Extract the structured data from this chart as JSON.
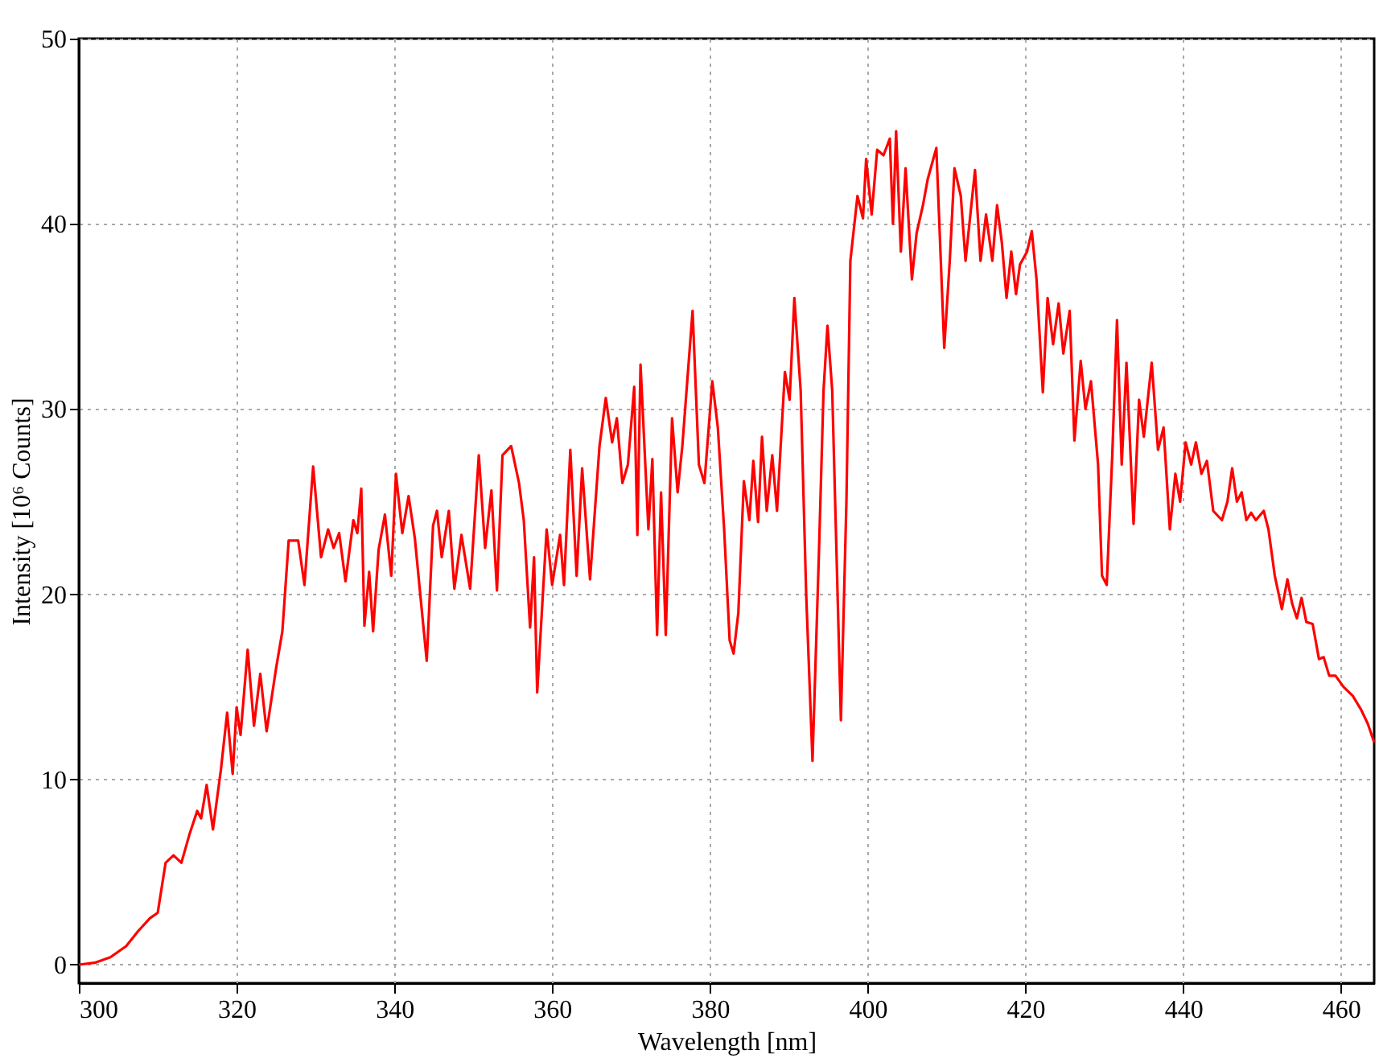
{
  "chart_data": {
    "type": "line",
    "xlabel": "Wavelength [nm]",
    "ylabel": "Intensity [10⁶ Counts]",
    "xlim": [
      300,
      464.2
    ],
    "ylim": [
      -1,
      50
    ],
    "xticks": [
      300,
      320,
      340,
      360,
      380,
      400,
      420,
      440,
      460
    ],
    "yticks": [
      0,
      10,
      20,
      30,
      40,
      50
    ],
    "grid": true,
    "line_style": "solid",
    "marker": "none",
    "x": [
      300,
      302,
      304,
      306,
      307.5,
      309,
      310,
      311,
      312,
      313,
      314,
      315,
      315.5,
      316.2,
      317,
      318,
      318.8,
      319.5,
      320,
      320.5,
      321.4,
      322.2,
      323,
      323.8,
      325,
      325.8,
      326.6,
      327.8,
      328.6,
      329.7,
      330.7,
      331.6,
      332.3,
      333,
      333.8,
      334.8,
      335.3,
      335.8,
      336.2,
      336.8,
      337.3,
      338,
      338.8,
      339.6,
      340.2,
      341,
      341.8,
      342.6,
      343.3,
      344.1,
      344.9,
      345.4,
      346,
      346.9,
      347.6,
      348.5,
      349.6,
      350.7,
      351.5,
      352.3,
      353,
      353.7,
      354.8,
      355.8,
      356.4,
      357.2,
      357.7,
      358.1,
      359.3,
      360,
      361,
      361.5,
      362.3,
      363.1,
      363.8,
      364.8,
      366,
      366.8,
      367.6,
      368.2,
      368.9,
      369.6,
      370.4,
      370.8,
      371.2,
      372.2,
      372.7,
      373.3,
      373.8,
      374.4,
      375.2,
      375.9,
      376.5,
      377.8,
      378.6,
      379.3,
      380.3,
      381,
      381.8,
      382.5,
      383,
      383.6,
      384.3,
      385,
      385.5,
      386.1,
      386.6,
      387.2,
      387.9,
      388.5,
      389.5,
      390.1,
      390.7,
      391.5,
      392.2,
      393,
      393.8,
      394.4,
      394.9,
      395.5,
      396.6,
      397.3,
      397.8,
      398.7,
      399.4,
      399.8,
      400.5,
      401.2,
      402,
      402.8,
      403.2,
      403.6,
      404.2,
      404.8,
      405.6,
      406.2,
      407,
      407.6,
      408.7,
      409.7,
      410.4,
      411,
      411.8,
      412.4,
      413.6,
      414.3,
      415,
      415.8,
      416.4,
      417,
      417.6,
      418.2,
      418.8,
      419.3,
      420.2,
      420.8,
      421.4,
      422.2,
      422.8,
      423.5,
      424.2,
      424.8,
      425.6,
      426.2,
      427,
      427.6,
      428.3,
      429.2,
      429.7,
      430.3,
      431,
      431.6,
      432.2,
      432.8,
      433.7,
      434.4,
      435,
      436,
      436.8,
      437.5,
      438.3,
      439,
      439.6,
      440.3,
      441,
      441.6,
      442.3,
      443,
      443.8,
      444.9,
      445.6,
      446.2,
      446.8,
      447.4,
      448,
      448.6,
      449.2,
      450.2,
      450.8,
      451.6,
      452.5,
      453.2,
      453.8,
      454.4,
      455,
      455.6,
      456.4,
      457.2,
      457.8,
      458.5,
      459.3,
      460.3,
      461.5,
      462.5,
      463.4,
      464.2
    ],
    "series": [
      {
        "color": "#ff0000",
        "values": [
          0,
          0.1,
          0.4,
          1,
          1.8,
          2.5,
          2.8,
          5.5,
          5.9,
          5.5,
          7,
          8.3,
          7.9,
          9.7,
          7.3,
          10.5,
          13.6,
          10.3,
          13.9,
          12.4,
          17,
          12.9,
          15.7,
          12.6,
          16,
          18,
          22.9,
          22.9,
          20.5,
          26.9,
          22,
          23.5,
          22.5,
          23.3,
          20.7,
          24,
          23.3,
          25.7,
          18.3,
          21.2,
          18,
          22.4,
          24.3,
          21,
          26.5,
          23.3,
          25.3,
          23,
          19.9,
          16.4,
          23.7,
          24.5,
          22,
          24.5,
          20.3,
          23.2,
          20.3,
          27.5,
          22.5,
          25.6,
          20.2,
          27.5,
          28,
          26,
          24,
          18.2,
          22,
          14.7,
          23.5,
          20.5,
          23.2,
          20.5,
          27.8,
          21,
          26.8,
          20.8,
          28,
          30.6,
          28.2,
          29.5,
          26,
          27,
          31.2,
          23.2,
          32.4,
          23.5,
          27.3,
          17.8,
          25.5,
          17.8,
          29.5,
          25.5,
          28,
          35.3,
          27,
          26,
          31.5,
          29,
          23.5,
          17.5,
          16.8,
          19,
          26.1,
          24,
          27.2,
          23.9,
          28.5,
          24.5,
          27.5,
          24.5,
          32,
          30.5,
          36,
          31,
          20,
          11,
          22,
          31,
          34.5,
          31,
          13.2,
          25,
          38,
          41.5,
          40.3,
          43.5,
          40.5,
          44,
          43.7,
          44.6,
          40,
          45,
          38.5,
          43,
          37,
          39.5,
          41,
          42.4,
          44.1,
          33.3,
          38,
          43,
          41.5,
          38,
          42.9,
          38,
          40.5,
          38,
          41,
          39,
          36,
          38.5,
          36.2,
          37.8,
          38.5,
          39.6,
          37,
          30.9,
          36,
          33.5,
          35.7,
          33,
          35.3,
          28.3,
          32.6,
          30,
          31.5,
          27,
          21,
          20.5,
          27.5,
          34.8,
          27,
          32.5,
          23.8,
          30.5,
          28.5,
          32.5,
          27.8,
          29,
          23.5,
          26.5,
          25,
          28.2,
          27,
          28.2,
          26.5,
          27.2,
          24.5,
          24,
          25,
          26.8,
          25,
          25.5,
          24,
          24.4,
          24,
          24.5,
          23.5,
          21,
          19.2,
          20.8,
          19.5,
          18.7,
          19.8,
          18.5,
          18.4,
          16.5,
          16.6,
          15.6,
          15.6,
          15,
          14.5,
          13.8,
          13,
          12
        ]
      }
    ]
  }
}
